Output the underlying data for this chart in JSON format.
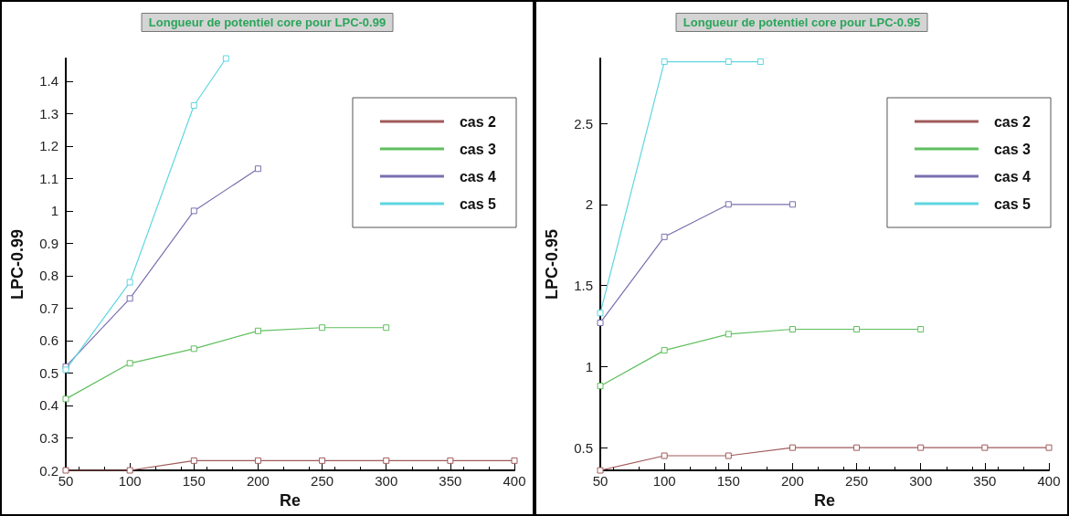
{
  "chart_data": [
    {
      "type": "line",
      "title": "Longueur de potentiel core pour LPC-0.99",
      "xlabel": "Re",
      "ylabel": "LPC-0.99",
      "xlim": [
        50,
        400
      ],
      "xticks": [
        50,
        100,
        150,
        200,
        250,
        300,
        350,
        400
      ],
      "ylim": [
        0.2,
        1.47
      ],
      "yticks": [
        0.2,
        0.3,
        0.4,
        0.5,
        0.6,
        0.7,
        0.8,
        0.9,
        1,
        1.1,
        1.2,
        1.3,
        1.4
      ],
      "grid": false,
      "legend": "top right",
      "marker": "square",
      "line_style": "solid",
      "series": [
        {
          "name": "cas 2",
          "color": "#a05a5a",
          "x": [
            50,
            100,
            150,
            200,
            250,
            300,
            350,
            400
          ],
          "values": [
            0.2,
            0.2,
            0.23,
            0.23,
            0.23,
            0.23,
            0.23,
            0.23
          ]
        },
        {
          "name": "cas 3",
          "color": "#5fbf5f",
          "x": [
            50,
            100,
            150,
            200,
            250,
            300
          ],
          "values": [
            0.42,
            0.53,
            0.575,
            0.63,
            0.64,
            0.64
          ]
        },
        {
          "name": "cas 4",
          "color": "#7a6fb0",
          "x": [
            50,
            100,
            150,
            200
          ],
          "values": [
            0.52,
            0.73,
            1.0,
            1.13
          ]
        },
        {
          "name": "cas 5",
          "color": "#5fd6e0",
          "x": [
            50,
            100,
            150,
            175
          ],
          "values": [
            0.51,
            0.78,
            1.325,
            1.47
          ]
        }
      ]
    },
    {
      "type": "line",
      "title": "Longueur de potentiel core pour LPC-0.95",
      "xlabel": "Re",
      "ylabel": "LPC-0.95",
      "xlim": [
        50,
        400
      ],
      "xticks": [
        50,
        100,
        150,
        200,
        250,
        300,
        350,
        400
      ],
      "ylim": [
        0.36,
        2.9
      ],
      "yticks": [
        0.5,
        1,
        1.5,
        2,
        2.5
      ],
      "grid": false,
      "legend": "top right",
      "marker": "square",
      "line_style": "solid",
      "series": [
        {
          "name": "cas 2",
          "color": "#a05a5a",
          "x": [
            50,
            100,
            150,
            200,
            250,
            300,
            350,
            400
          ],
          "values": [
            0.36,
            0.45,
            0.45,
            0.5,
            0.5,
            0.5,
            0.5,
            0.5
          ]
        },
        {
          "name": "cas 3",
          "color": "#5fbf5f",
          "x": [
            50,
            100,
            150,
            200,
            250,
            300
          ],
          "values": [
            0.88,
            1.1,
            1.2,
            1.23,
            1.23,
            1.23
          ]
        },
        {
          "name": "cas 4",
          "color": "#7a6fb0",
          "x": [
            50,
            100,
            150,
            200
          ],
          "values": [
            1.27,
            1.8,
            2.0,
            2.0
          ]
        },
        {
          "name": "cas 5",
          "color": "#5fd6e0",
          "x": [
            50,
            100,
            150,
            175
          ],
          "values": [
            1.33,
            2.88,
            2.88,
            2.88
          ]
        }
      ]
    }
  ]
}
